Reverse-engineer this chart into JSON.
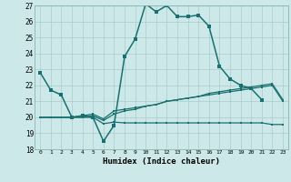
{
  "xlabel": "Humidex (Indice chaleur)",
  "xlim": [
    -0.5,
    23.5
  ],
  "ylim": [
    18,
    27
  ],
  "xticks": [
    0,
    1,
    2,
    3,
    4,
    5,
    6,
    7,
    8,
    9,
    10,
    11,
    12,
    13,
    14,
    15,
    16,
    17,
    18,
    19,
    20,
    21,
    22,
    23
  ],
  "yticks": [
    18,
    19,
    20,
    21,
    22,
    23,
    24,
    25,
    26,
    27
  ],
  "bg_color": "#cce8e8",
  "grid_color": "#aacccc",
  "line_color": "#1a7070",
  "line1_y": [
    22.8,
    21.7,
    21.4,
    20.0,
    20.1,
    20.0,
    18.5,
    19.5,
    23.8,
    24.9,
    27.1,
    26.6,
    27.0,
    26.3,
    26.3,
    26.4,
    25.7,
    23.2,
    22.4,
    22.0,
    21.8,
    21.1,
    null,
    null
  ],
  "line2_y": [
    20.0,
    20.0,
    20.0,
    20.0,
    20.1,
    20.2,
    19.9,
    20.4,
    20.5,
    20.6,
    20.7,
    20.8,
    21.0,
    21.1,
    21.2,
    21.3,
    21.5,
    21.6,
    21.7,
    21.8,
    21.9,
    22.0,
    22.1,
    21.1
  ],
  "line3_y": [
    20.0,
    20.0,
    20.0,
    20.0,
    20.0,
    20.1,
    19.8,
    20.2,
    20.4,
    20.5,
    20.7,
    20.8,
    21.0,
    21.1,
    21.2,
    21.3,
    21.4,
    21.5,
    21.6,
    21.7,
    21.8,
    21.9,
    22.0,
    21.0
  ],
  "line4_y": [
    20.0,
    20.0,
    20.0,
    20.0,
    20.0,
    20.0,
    19.6,
    19.7,
    19.65,
    19.65,
    19.65,
    19.65,
    19.65,
    19.65,
    19.65,
    19.65,
    19.65,
    19.65,
    19.65,
    19.65,
    19.65,
    19.65,
    19.55,
    19.55
  ]
}
